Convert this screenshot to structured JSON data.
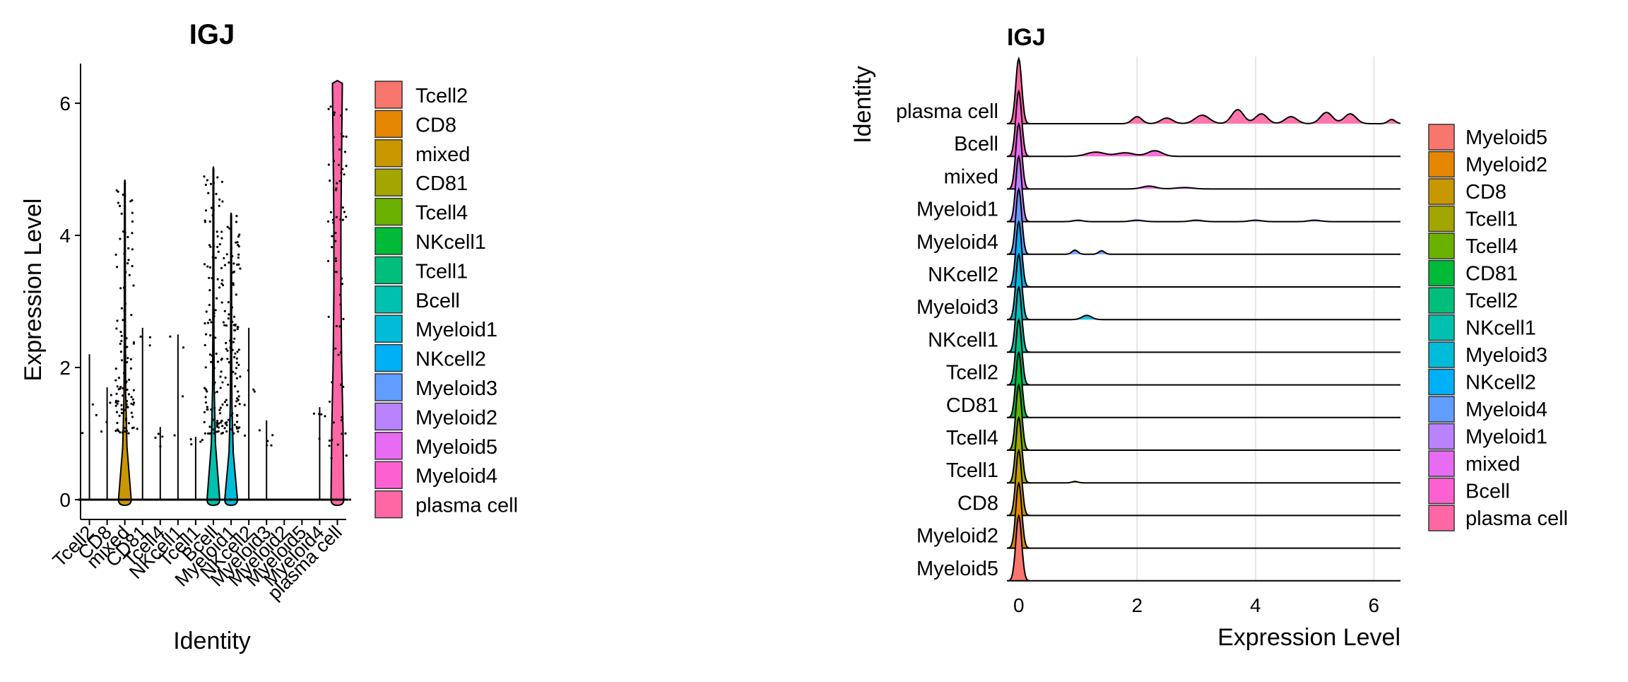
{
  "chart_data": [
    {
      "type": "violin",
      "title": "IGJ",
      "xlabel": "Identity",
      "ylabel": "Expression Level",
      "ylim": [
        -0.3,
        6.6
      ],
      "yticks": [
        0,
        2,
        4,
        6
      ],
      "categories": [
        "Tcell2",
        "CD8",
        "mixed",
        "CD81",
        "Tcell4",
        "NKcell1",
        "Tcell1",
        "Bcell",
        "Myeloid1",
        "NKcell2",
        "Myeloid3",
        "Myeloid2",
        "Myeloid5",
        "Myeloid4",
        "plasma cell"
      ],
      "colors": [
        "#F8766D",
        "#E58700",
        "#C99800",
        "#A3A500",
        "#6BB100",
        "#00BA38",
        "#00BF7D",
        "#00C0AF",
        "#00BCD8",
        "#00B0F6",
        "#619CFF",
        "#B983FF",
        "#E76BF3",
        "#FD61D1",
        "#FF67A4"
      ],
      "max_values": [
        2.2,
        1.7,
        4.8,
        2.6,
        1.1,
        2.5,
        0.95,
        5.0,
        4.3,
        2.6,
        1.2,
        0.0,
        0.0,
        1.4,
        6.3
      ],
      "legend": [
        "Tcell2",
        "CD8",
        "mixed",
        "CD81",
        "Tcell4",
        "NKcell1",
        "Tcell1",
        "Bcell",
        "Myeloid1",
        "NKcell2",
        "Myeloid3",
        "Myeloid2",
        "Myeloid5",
        "Myeloid4",
        "plasma cell"
      ]
    },
    {
      "type": "ridgeline",
      "title": "IGJ",
      "xlabel": "Expression Level",
      "ylabel": "Identity",
      "xlim": [
        -0.2,
        6.45
      ],
      "xticks": [
        0,
        2,
        4,
        6
      ],
      "rows_top_to_bottom": [
        "plasma cell",
        "Bcell",
        "mixed",
        "Myeloid1",
        "Myeloid4",
        "NKcell2",
        "Myeloid3",
        "NKcell1",
        "Tcell2",
        "CD81",
        "Tcell4",
        "Tcell1",
        "CD8",
        "Myeloid2",
        "Myeloid5"
      ],
      "legend": [
        "Myeloid5",
        "Myeloid2",
        "CD8",
        "Tcell1",
        "Tcell4",
        "CD81",
        "Tcell2",
        "NKcell1",
        "Myeloid3",
        "NKcell2",
        "Myeloid4",
        "Myeloid1",
        "mixed",
        "Bcell",
        "plasma cell"
      ],
      "legend_colors": [
        "#F8766D",
        "#E58700",
        "#C99800",
        "#A3A500",
        "#6BB100",
        "#00BA38",
        "#00BF7D",
        "#00C0AF",
        "#00BCD8",
        "#00B0F6",
        "#619CFF",
        "#B983FF",
        "#E76BF3",
        "#FD61D1",
        "#FF67A4"
      ]
    }
  ]
}
